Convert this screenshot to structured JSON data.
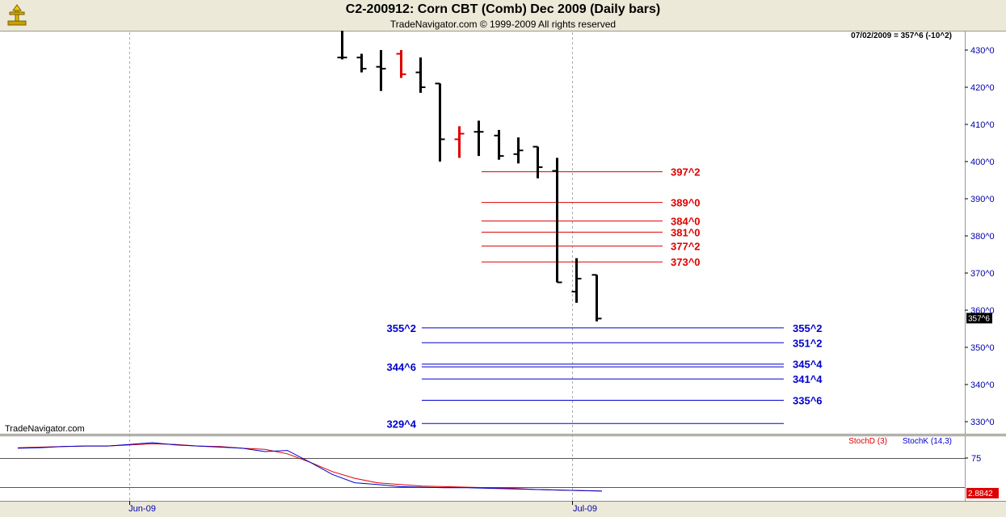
{
  "header": {
    "title": "C2-200912:  Corn CBT (Comb) Dec 2009  (Daily bars)",
    "subtitle": "TradeNavigator.com © 1999-2009 All rights reserved"
  },
  "watermark": "TradeNavigator.com",
  "last_info": "07/02/2009 = 357^6 (-10^2)",
  "colors": {
    "up": "#000000",
    "down": "#000000",
    "red_bar": "#DD0000",
    "target_red": "#DD0000",
    "target_blue": "#0000CC",
    "stochD": "#DD0000",
    "stochK": "#0000CC"
  },
  "chart_data": [
    {
      "type": "ohlc",
      "ylim": [
        326,
        438
      ],
      "y_ticks": [
        "430^0",
        "420^0",
        "410^0",
        "400^0",
        "390^0",
        "380^0",
        "370^0",
        "360^0",
        "350^0",
        "340^0",
        "330^0"
      ],
      "y_tick_values": [
        430,
        420,
        410,
        400,
        390,
        380,
        370,
        360,
        350,
        340,
        330
      ],
      "x_labels": [
        "Jun-09",
        "Jul-09"
      ],
      "last_price_label": "357^6",
      "bars": [
        {
          "o": 428,
          "h": 438,
          "l": 427.5,
          "c": 428,
          "color": "black"
        },
        {
          "o": 428,
          "h": 429,
          "l": 424,
          "c": 425,
          "color": "black"
        },
        {
          "o": 425.5,
          "h": 430,
          "l": 419,
          "c": 425,
          "color": "black"
        },
        {
          "o": 429,
          "h": 430,
          "l": 422.5,
          "c": 423.5,
          "color": "red"
        },
        {
          "o": 424,
          "h": 428,
          "l": 418.5,
          "c": 420,
          "color": "black"
        },
        {
          "o": 421,
          "h": 421,
          "l": 400,
          "c": 406,
          "color": "black"
        },
        {
          "o": 406,
          "h": 409.5,
          "l": 401,
          "c": 407.5,
          "color": "red"
        },
        {
          "o": 408,
          "h": 411,
          "l": 401.5,
          "c": 408,
          "color": "black"
        },
        {
          "o": 407,
          "h": 408.5,
          "l": 400.5,
          "c": 401.5,
          "color": "black"
        },
        {
          "o": 402,
          "h": 406.5,
          "l": 399.5,
          "c": 403,
          "color": "black"
        },
        {
          "o": 404,
          "h": 404,
          "l": 395.5,
          "c": 398.5,
          "color": "black"
        },
        {
          "o": 397.5,
          "h": 401,
          "l": 367.5,
          "c": 367.5,
          "color": "black"
        },
        {
          "o": 365,
          "h": 374,
          "l": 362,
          "c": 368.5,
          "color": "black"
        },
        {
          "o": 369.5,
          "h": 369.5,
          "l": 357,
          "c": 357.75,
          "color": "black"
        }
      ],
      "targets_red": [
        {
          "label": "397^2",
          "value": 397.25
        },
        {
          "label": "389^0",
          "value": 389
        },
        {
          "label": "384^0",
          "value": 384
        },
        {
          "label": "381^0",
          "value": 381
        },
        {
          "label": "377^2",
          "value": 377.25
        },
        {
          "label": "373^0",
          "value": 373
        }
      ],
      "targets_blue": [
        {
          "label": "355^2",
          "value": 355.25,
          "left_label": "355^2"
        },
        {
          "label": "351^2",
          "value": 351.25,
          "left_label": ""
        },
        {
          "label": "345^4",
          "value": 345.5,
          "left_label": ""
        },
        {
          "label": "",
          "value": 344.75,
          "left_label": "344^6"
        },
        {
          "label": "341^4",
          "value": 341.5,
          "left_label": ""
        },
        {
          "label": "335^6",
          "value": 335.75,
          "left_label": ""
        },
        {
          "label": "",
          "value": 329.5,
          "left_label": "329^4"
        }
      ]
    },
    {
      "type": "line",
      "title": "StochD (3)  StochK (14,3)",
      "ylim": [
        0,
        100
      ],
      "y_tick_labels": [
        "75",
        "2.8842"
      ],
      "y_tick_values": [
        75,
        2.88
      ],
      "series": [
        {
          "name": "StochD (3)",
          "color": "#DD0000",
          "values": [
            81,
            82,
            83,
            84,
            84,
            86,
            88,
            87,
            84,
            83,
            80,
            78,
            70,
            55,
            38,
            26,
            18,
            15,
            12,
            11,
            10,
            9,
            8,
            6,
            5,
            4,
            3
          ]
        },
        {
          "name": "StochK (14,3)",
          "color": "#0000CC",
          "values": [
            80,
            81,
            83,
            84,
            84,
            87,
            90,
            86,
            84,
            82,
            80,
            74,
            76,
            55,
            33,
            18,
            15,
            11,
            10,
            9,
            9,
            8,
            7,
            6,
            5,
            4,
            3
          ]
        }
      ]
    }
  ]
}
